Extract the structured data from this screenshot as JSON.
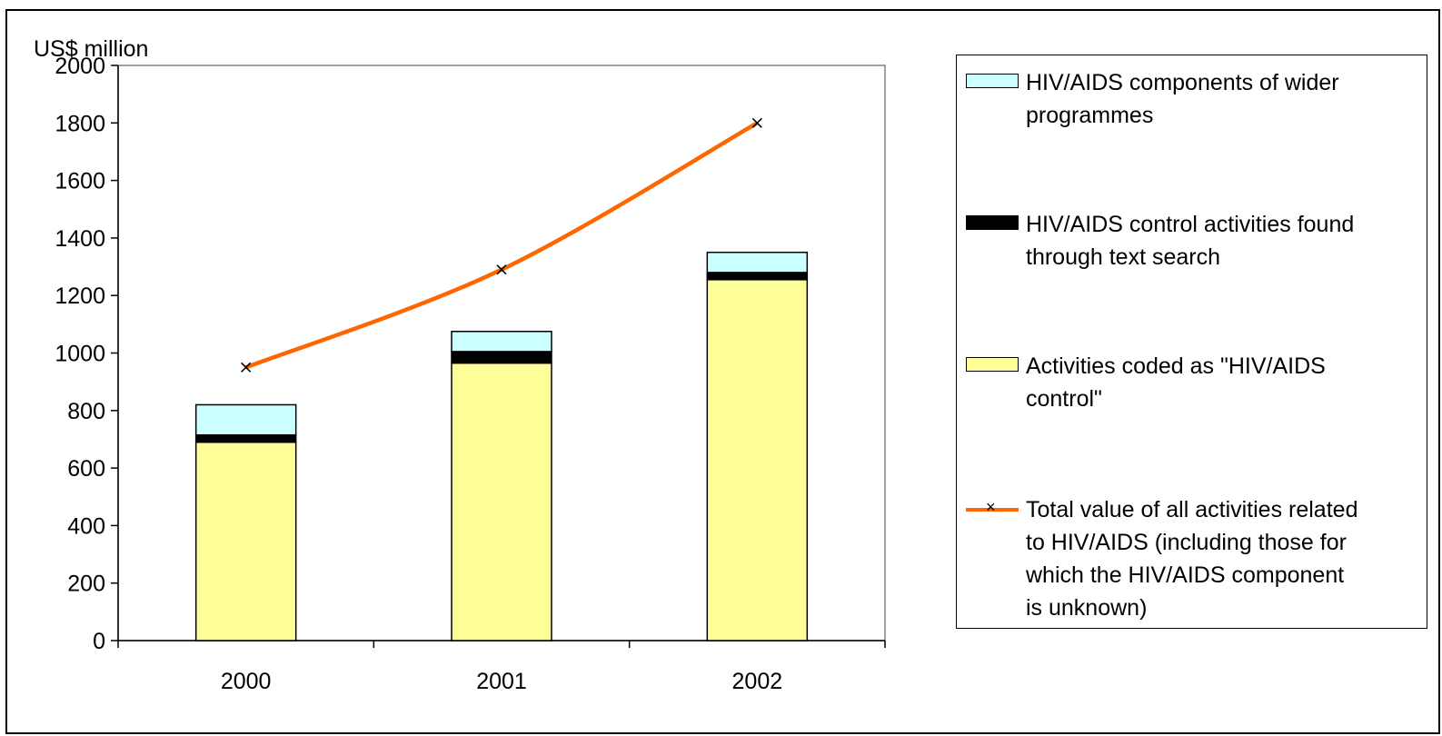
{
  "chart_data": {
    "type": "bar",
    "stacked": true,
    "ylabel": "US$ million",
    "ylim": [
      0,
      2000
    ],
    "yticks": [
      0,
      200,
      400,
      600,
      800,
      1000,
      1200,
      1400,
      1600,
      1800,
      2000
    ],
    "categories": [
      "2000",
      "2001",
      "2002"
    ],
    "series": [
      {
        "name": "Activities coded as \"HIV/AIDS control\"",
        "kind": "bar",
        "color": "#ffff99",
        "values": [
          690,
          965,
          1255
        ]
      },
      {
        "name": "HIV/AIDS control activities found through text search",
        "kind": "bar",
        "color": "#000000",
        "values": [
          25,
          40,
          25
        ]
      },
      {
        "name": "HIV/AIDS components of wider programmes",
        "kind": "bar",
        "color": "#ccffff",
        "values": [
          105,
          70,
          70
        ]
      },
      {
        "name": "Total value of all activities related to HIV/AIDS (including those for which the HIV/AIDS component is unknown)",
        "kind": "line",
        "color": "#ff6600",
        "marker": "x",
        "values": [
          950,
          1290,
          1800
        ]
      }
    ],
    "grid": false,
    "legend_position": "right"
  },
  "legend": {
    "items": [
      {
        "label_lines": [
          "HIV/AIDS components of wider",
          "programmes"
        ],
        "swatch": "#ccffff",
        "kind": "box"
      },
      {
        "label_lines": [
          "HIV/AIDS control activities found",
          "through text search"
        ],
        "swatch": "#000000",
        "kind": "box"
      },
      {
        "label_lines": [
          "Activities coded as \"HIV/AIDS",
          "control\""
        ],
        "swatch": "#ffff99",
        "kind": "box"
      },
      {
        "label_lines": [
          "Total value of all activities related",
          "to HIV/AIDS (including those for",
          "which the HIV/AIDS component",
          "is unknown)"
        ],
        "swatch": "#ff6600",
        "kind": "line"
      }
    ]
  }
}
